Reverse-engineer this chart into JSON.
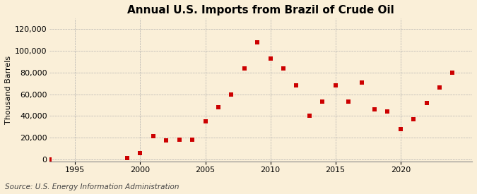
{
  "title": "Annual U.S. Imports from Brazil of Crude Oil",
  "ylabel": "Thousand Barrels",
  "source": "Source: U.S. Energy Information Administration",
  "background_color": "#faefd8",
  "grid_color": "#aaaaaa",
  "marker_color": "#cc0000",
  "xlim": [
    1993,
    2025.5
  ],
  "ylim": [
    -2000,
    130000
  ],
  "yticks": [
    0,
    20000,
    40000,
    60000,
    80000,
    100000,
    120000
  ],
  "xticks": [
    1995,
    2000,
    2005,
    2010,
    2015,
    2020
  ],
  "years": [
    1993,
    1999,
    2000,
    2001,
    2002,
    2003,
    2004,
    2005,
    2006,
    2007,
    2008,
    2009,
    2010,
    2011,
    2012,
    2013,
    2014,
    2015,
    2016,
    2017,
    2018,
    2019,
    2020,
    2021,
    2022,
    2023,
    2024
  ],
  "values": [
    0,
    1200,
    6000,
    21500,
    17500,
    18000,
    18000,
    35000,
    48000,
    60000,
    84000,
    108000,
    93000,
    84000,
    68000,
    40000,
    53000,
    68000,
    53000,
    71000,
    46000,
    44000,
    28000,
    37000,
    52000,
    66000,
    80000
  ],
  "title_fontsize": 11,
  "ylabel_fontsize": 8,
  "tick_fontsize": 8,
  "source_fontsize": 7.5
}
